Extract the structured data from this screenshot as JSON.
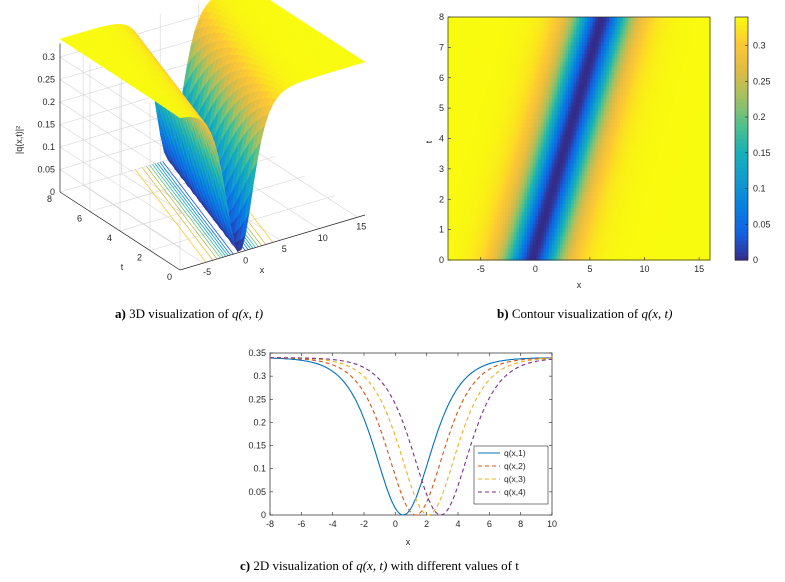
{
  "captions": {
    "a": {
      "label": "a)",
      "text_before": "3D visualization of ",
      "math": "q(x, t)",
      "text_after": ""
    },
    "b": {
      "label": "b)",
      "text_before": "Contour visualization of ",
      "math": "q(x, t)",
      "text_after": ""
    },
    "c": {
      "label": "c)",
      "text_before": "2D visualization of ",
      "math": "q(x, t)",
      "text_after": " with different values of t"
    }
  },
  "chart_data": [
    {
      "id": "a",
      "type": "surface",
      "zlabel": "|q(x,t)|²",
      "xlabel": "x",
      "ylabel": "t",
      "x_range": [
        -8,
        16
      ],
      "t_range": [
        0,
        8
      ],
      "z_range": [
        0,
        0.33
      ],
      "x_ticks": [
        "-5",
        "0",
        "5",
        "10",
        "15"
      ],
      "t_ticks": [
        "0",
        "2",
        "4",
        "6",
        "8"
      ],
      "z_ticks": [
        "0",
        "0.05",
        "0.1",
        "0.15",
        "0.2",
        "0.25",
        "0.3"
      ],
      "colormap": "parula",
      "grid": true
    },
    {
      "id": "b",
      "type": "heatmap",
      "xlabel": "x",
      "ylabel": "t",
      "x_range": [
        -8,
        16
      ],
      "t_range": [
        0,
        8
      ],
      "x_ticks": [
        "-5",
        "0",
        "5",
        "10",
        "15"
      ],
      "t_ticks": [
        "0",
        "1",
        "2",
        "3",
        "4",
        "5",
        "6",
        "7",
        "8"
      ],
      "colorbar_ticks": [
        "0",
        "0.05",
        "0.1",
        "0.15",
        "0.2",
        "0.25",
        "0.3"
      ],
      "colorbar_range": [
        0,
        0.34
      ],
      "colormap": "parula"
    },
    {
      "id": "c",
      "type": "line",
      "xlabel": "x",
      "ylabel": "",
      "xlim": [
        -8,
        10
      ],
      "ylim": [
        0,
        0.35
      ],
      "x_ticks": [
        "-8",
        "-6",
        "-4",
        "-2",
        "0",
        "2",
        "4",
        "6",
        "8",
        "10"
      ],
      "y_ticks": [
        "0",
        "0.05",
        "0.1",
        "0.15",
        "0.2",
        "0.25",
        "0.3",
        "0.35"
      ],
      "legend_position": "lower-right",
      "series": [
        {
          "name": "q(x,1)",
          "t": 1,
          "color": "#0072BD",
          "dash": "solid"
        },
        {
          "name": "q(x,2)",
          "t": 2,
          "color": "#D95319",
          "dash": "dashed"
        },
        {
          "name": "q(x,3)",
          "t": 3,
          "color": "#EDB120",
          "dash": "dashed"
        },
        {
          "name": "q(x,4)",
          "t": 4,
          "color": "#7E2F8E",
          "dash": "dashed"
        }
      ]
    }
  ]
}
